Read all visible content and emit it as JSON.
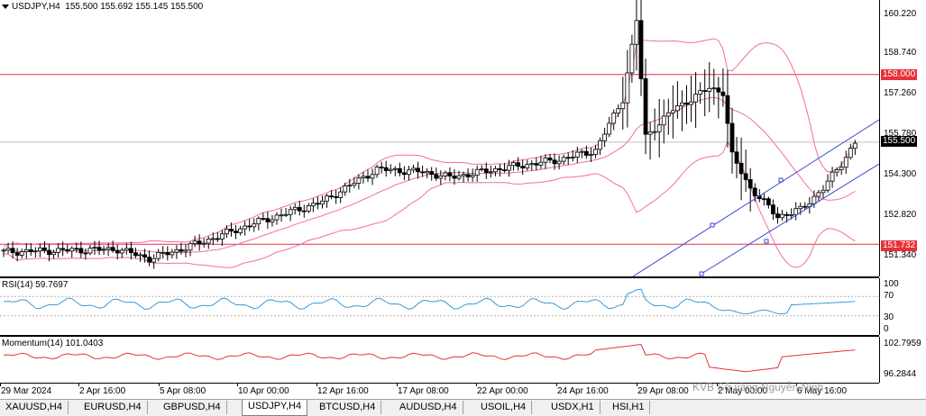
{
  "header": {
    "symbol_title": "USDJPY,H4",
    "ohlc": "155.500 155.692 155.145 155.500"
  },
  "main_axis": {
    "labels": [
      "160.220",
      "158.740",
      "157.260",
      "155.780",
      "154.300",
      "152.820",
      "151.340"
    ],
    "current_price": "155.500",
    "current_price_color": "#000000",
    "resistance_price": "158.000",
    "support_price": "151.732",
    "hline_color": "#e8313a"
  },
  "rsi": {
    "title": "RSI(14) 59.7697",
    "levels": [
      "100",
      "70",
      "30",
      "0"
    ],
    "color": "#3a9ad9"
  },
  "momentum": {
    "title": "Momentum(14) 101.0403",
    "levels": [
      "102.7959",
      "96.2844"
    ],
    "color": "#e8313a"
  },
  "time_axis": {
    "labels": [
      "29 Mar 2024",
      "2 Apr 16:00",
      "5 Apr 08:00",
      "10 Apr 00:00",
      "12 Apr 16:00",
      "17 Apr 08:00",
      "22 Apr 00:00",
      "24 Apr 16:00",
      "29 Apr 08:00",
      "2 May 00:00",
      "6 May 16:00"
    ]
  },
  "tabs": [
    "XAUUSD,H4",
    "EURUSD,H4",
    "GBPUSD,H4",
    "USDJPY,H4",
    "BTCUSD,H4",
    "AUDUSD,H4",
    "USOIL,H4",
    "USDX,H1",
    "HSI,H1"
  ],
  "active_tab": "USDJPY,H4",
  "watermark": "KVB Sở vàng Nguyễn Ninh",
  "colors": {
    "bollinger": "#f06ea0",
    "channel": "#3b46d8",
    "candle_up_fill": "#ffffff",
    "candle_down_fill": "#000000"
  }
}
